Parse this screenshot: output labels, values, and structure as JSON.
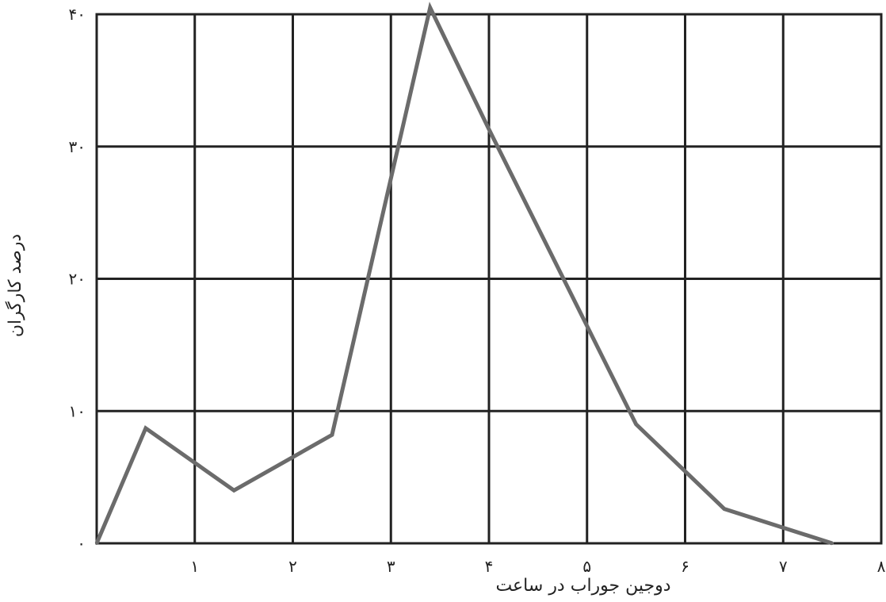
{
  "chart_data": {
    "type": "line",
    "title": "",
    "xlabel": "دوجین جوراب در ساعت",
    "ylabel": "درصد کارگران",
    "xlim": [
      0,
      8
    ],
    "ylim": [
      0,
      40
    ],
    "grid": true,
    "x_ticks": [
      1,
      2,
      3,
      4,
      5,
      6,
      7,
      8
    ],
    "x_tick_labels": [
      "۱",
      "۲",
      "۳",
      "۴",
      "۵",
      "۶",
      "۷",
      "۸"
    ],
    "y_ticks": [
      0,
      10,
      20,
      30,
      40
    ],
    "y_tick_labels": [
      "۰",
      "۱۰",
      "۲۰",
      "۳۰",
      "۴۰"
    ],
    "series": [
      {
        "x": [
          0,
          0.5,
          1.4,
          2.4,
          3.4,
          4.0,
          5.5,
          6.4,
          7.5
        ],
        "y": [
          0,
          8.7,
          4.0,
          8.2,
          40.5,
          31.3,
          9.0,
          2.6,
          0
        ]
      }
    ],
    "line_color": "#6b6b6b",
    "grid_color": "#222222"
  }
}
